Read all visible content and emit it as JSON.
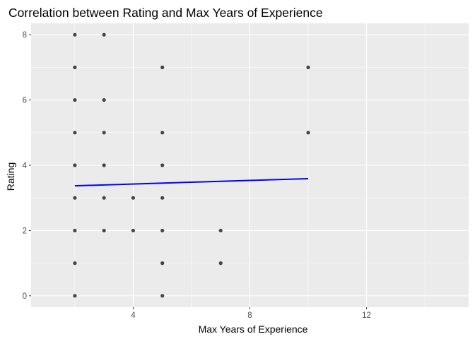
{
  "chart_data": {
    "type": "scatter",
    "title": "Correlation between Rating and Max Years of Experience",
    "xlabel": "Max Years of Experience",
    "ylabel": "Rating",
    "xlim": [
      0.5,
      15.5
    ],
    "ylim": [
      -0.35,
      8.35
    ],
    "x_ticks": [
      4,
      8,
      12
    ],
    "y_ticks": [
      0,
      2,
      4,
      6,
      8
    ],
    "x_minor_grid": [
      2,
      6,
      10,
      14
    ],
    "y_minor_grid": [
      1,
      3,
      5,
      7
    ],
    "grid": true,
    "points": [
      {
        "x": 2,
        "y": 8
      },
      {
        "x": 2,
        "y": 7
      },
      {
        "x": 2,
        "y": 6
      },
      {
        "x": 2,
        "y": 5
      },
      {
        "x": 2,
        "y": 4
      },
      {
        "x": 2,
        "y": 3
      },
      {
        "x": 2,
        "y": 2
      },
      {
        "x": 2,
        "y": 1
      },
      {
        "x": 2,
        "y": 0
      },
      {
        "x": 3,
        "y": 8
      },
      {
        "x": 3,
        "y": 6
      },
      {
        "x": 3,
        "y": 5
      },
      {
        "x": 3,
        "y": 4
      },
      {
        "x": 3,
        "y": 3
      },
      {
        "x": 3,
        "y": 2
      },
      {
        "x": 4,
        "y": 3
      },
      {
        "x": 4,
        "y": 2
      },
      {
        "x": 5,
        "y": 7
      },
      {
        "x": 5,
        "y": 5
      },
      {
        "x": 5,
        "y": 4
      },
      {
        "x": 5,
        "y": 3
      },
      {
        "x": 5,
        "y": 2
      },
      {
        "x": 5,
        "y": 1
      },
      {
        "x": 5,
        "y": 0
      },
      {
        "x": 7,
        "y": 2
      },
      {
        "x": 7,
        "y": 1
      },
      {
        "x": 10,
        "y": 7
      },
      {
        "x": 10,
        "y": 5
      }
    ],
    "trend_line": {
      "x": [
        2,
        10
      ],
      "y": [
        3.37,
        3.59
      ]
    },
    "colors": {
      "panel": "#ebebeb",
      "grid": "#ffffff",
      "point": "#000000",
      "trend": "#0000ff"
    }
  }
}
